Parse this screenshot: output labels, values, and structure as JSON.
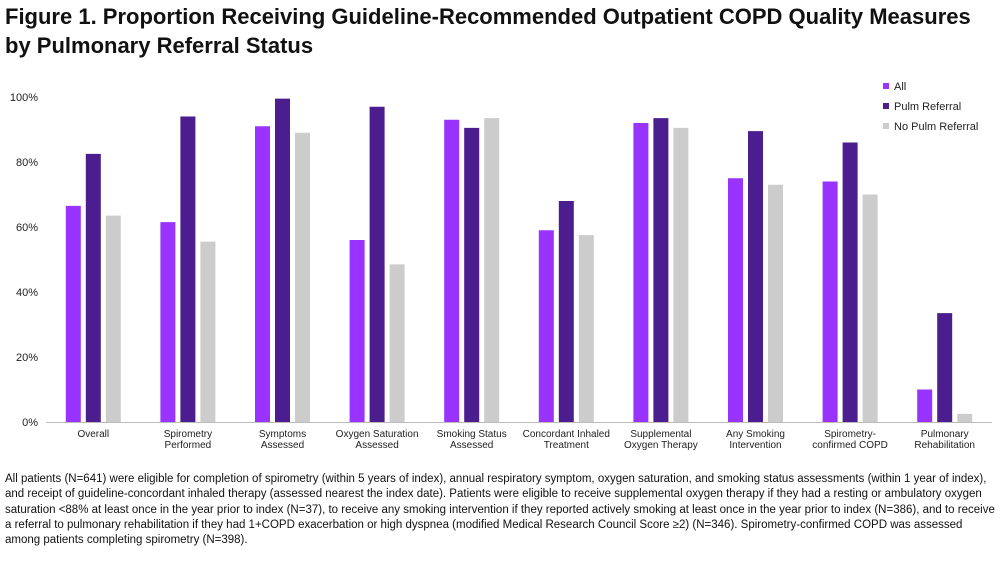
{
  "title": "Figure 1. Proportion Receiving Guideline-Recommended Outpatient COPD Quality Measures by Pulmonary Referral Status",
  "footnote": "All patients (N=641) were eligible for completion of spirometry (within 5 years of index), annual respiratory symptom, oxygen saturation, and smoking status assessments (within 1 year of index), and receipt of guideline-concordant inhaled therapy (assessed nearest the index date).  Patients were eligible to receive supplemental oxygen therapy if they had a resting or ambulatory oxygen saturation <88% at least once in the year prior to index (N=37), to receive any smoking intervention if they reported actively smoking at least once in the year prior to index (N=386), and to receive a referral to pulmonary rehabilitation if they had 1+COPD exacerbation or high dyspnea (modified Medical Research Council Score ≥2) (N=346). Spirometry-confirmed COPD was assessed among patients completing spirometry (N=398).",
  "chart_data": {
    "type": "bar",
    "title": "Figure 1. Proportion Receiving Guideline-Recommended Outpatient COPD Quality Measures by Pulmonary Referral Status",
    "xlabel": "",
    "ylabel": "",
    "ylim": [
      0,
      100
    ],
    "yticks": [
      "0%",
      "20%",
      "40%",
      "60%",
      "80%",
      "100%"
    ],
    "grid": false,
    "legend_position": "top-right",
    "categories": [
      [
        "Overall"
      ],
      [
        "Spirometry",
        "Performed"
      ],
      [
        "Symptoms",
        "Assessed"
      ],
      [
        "Oxygen Saturation",
        "Assessed"
      ],
      [
        "Smoking Status",
        "Assessed"
      ],
      [
        "Concordant Inhaled",
        "Treatment"
      ],
      [
        "Supplemental",
        "Oxygen Therapy"
      ],
      [
        "Any Smoking",
        "Intervention"
      ],
      [
        "Spirometry-",
        "confirmed COPD"
      ],
      [
        "Pulmonary",
        "Rehabilitation"
      ]
    ],
    "series": [
      {
        "name": "All",
        "color": "#9933ff",
        "values": [
          66.5,
          61.5,
          91,
          56,
          93,
          59,
          92,
          75,
          74,
          10
        ]
      },
      {
        "name": "Pulm Referral",
        "color": "#4b1d8f",
        "values": [
          82.5,
          94,
          99.5,
          97,
          90.5,
          68,
          93.5,
          89.5,
          86,
          33.5
        ]
      },
      {
        "name": "No Pulm Referral",
        "color": "#cccccc",
        "values": [
          63.5,
          55.5,
          89,
          48.5,
          93.5,
          57.5,
          90.5,
          73,
          70,
          2.5
        ]
      }
    ]
  }
}
